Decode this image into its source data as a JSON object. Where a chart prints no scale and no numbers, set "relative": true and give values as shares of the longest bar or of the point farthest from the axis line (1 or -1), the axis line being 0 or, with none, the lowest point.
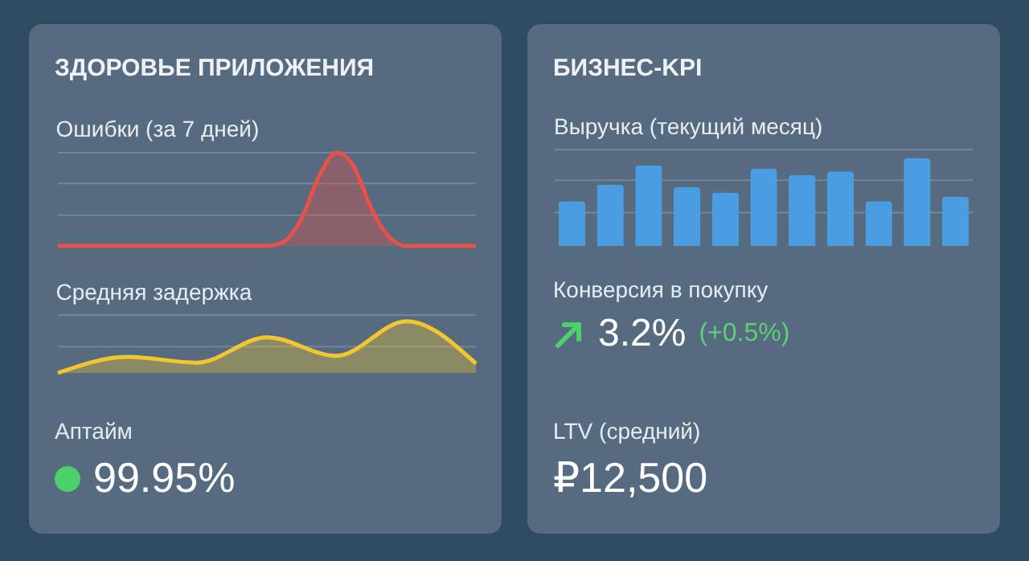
{
  "chart_data": [
    {
      "type": "other",
      "title": "ЗДОРОВЬЕ ПРИЛОЖЕНИЯ"
    },
    {
      "type": "area",
      "title": "Ошибки (за 7 дней)",
      "relative": true,
      "ref_lines": [
        {
          "axis": "y",
          "value": 0.33,
          "color": "#74879a"
        },
        {
          "axis": "y",
          "value": 0.67,
          "color": "#74879a"
        },
        {
          "axis": "y",
          "value": 1,
          "color": "#74879a"
        }
      ],
      "categories": [
        null,
        null,
        null,
        null,
        null,
        null,
        null,
        null,
        null,
        null,
        null,
        null,
        null,
        null,
        null,
        null,
        null,
        null,
        null,
        null,
        null,
        null,
        null,
        null,
        null
      ],
      "series": [
        {
          "color": "#e8504a",
          "values": [
            0,
            0,
            0,
            0,
            0,
            0,
            0,
            0,
            0,
            0,
            0,
            0,
            0,
            0.05,
            0.3,
            0.75,
            1,
            0.85,
            0.4,
            0.1,
            0,
            0,
            0,
            0,
            0
          ]
        }
      ]
    },
    {
      "type": "area",
      "title": "Средняя задержка",
      "relative": true,
      "ref_lines": [
        {
          "axis": "y",
          "value": 0.51,
          "color": "#74879a"
        },
        {
          "axis": "y",
          "value": 1.12,
          "color": "#74879a"
        }
      ],
      "categories": [
        null,
        null,
        null,
        null,
        null,
        null,
        null
      ],
      "series": [
        {
          "color": "#f2c531",
          "values": [
            0,
            0.31,
            0.2,
            0.69,
            0.33,
            1,
            0.18
          ]
        }
      ]
    },
    {
      "type": "other",
      "title": "Аптайм",
      "annotations": [
        "99.95%"
      ]
    },
    {
      "type": "other",
      "title": "БИЗНЕС-KPI"
    },
    {
      "type": "bar",
      "title": "Выручка (текущий месяц)",
      "relative": true,
      "ref_lines": [
        {
          "axis": "y",
          "value": 0.38,
          "color": "#74879a"
        },
        {
          "axis": "y",
          "value": 0.75,
          "color": "#74879a"
        },
        {
          "axis": "y",
          "value": 1.1,
          "color": "#74879a"
        }
      ],
      "categories": [
        null,
        null,
        null,
        null,
        null,
        null,
        null,
        null,
        null,
        null,
        null
      ],
      "series": [
        {
          "color": "#4a9de0",
          "values": [
            0.51,
            0.7,
            0.92,
            0.67,
            0.61,
            0.88,
            0.81,
            0.85,
            0.51,
            1,
            0.56
          ]
        }
      ]
    },
    {
      "type": "other",
      "title": "Конверсия в покупку",
      "annotations": [
        "3.2%",
        "(+0.5%)"
      ]
    },
    {
      "type": "other",
      "title": "LTV (средний)",
      "annotations": [
        "₽12,500"
      ]
    }
  ]
}
